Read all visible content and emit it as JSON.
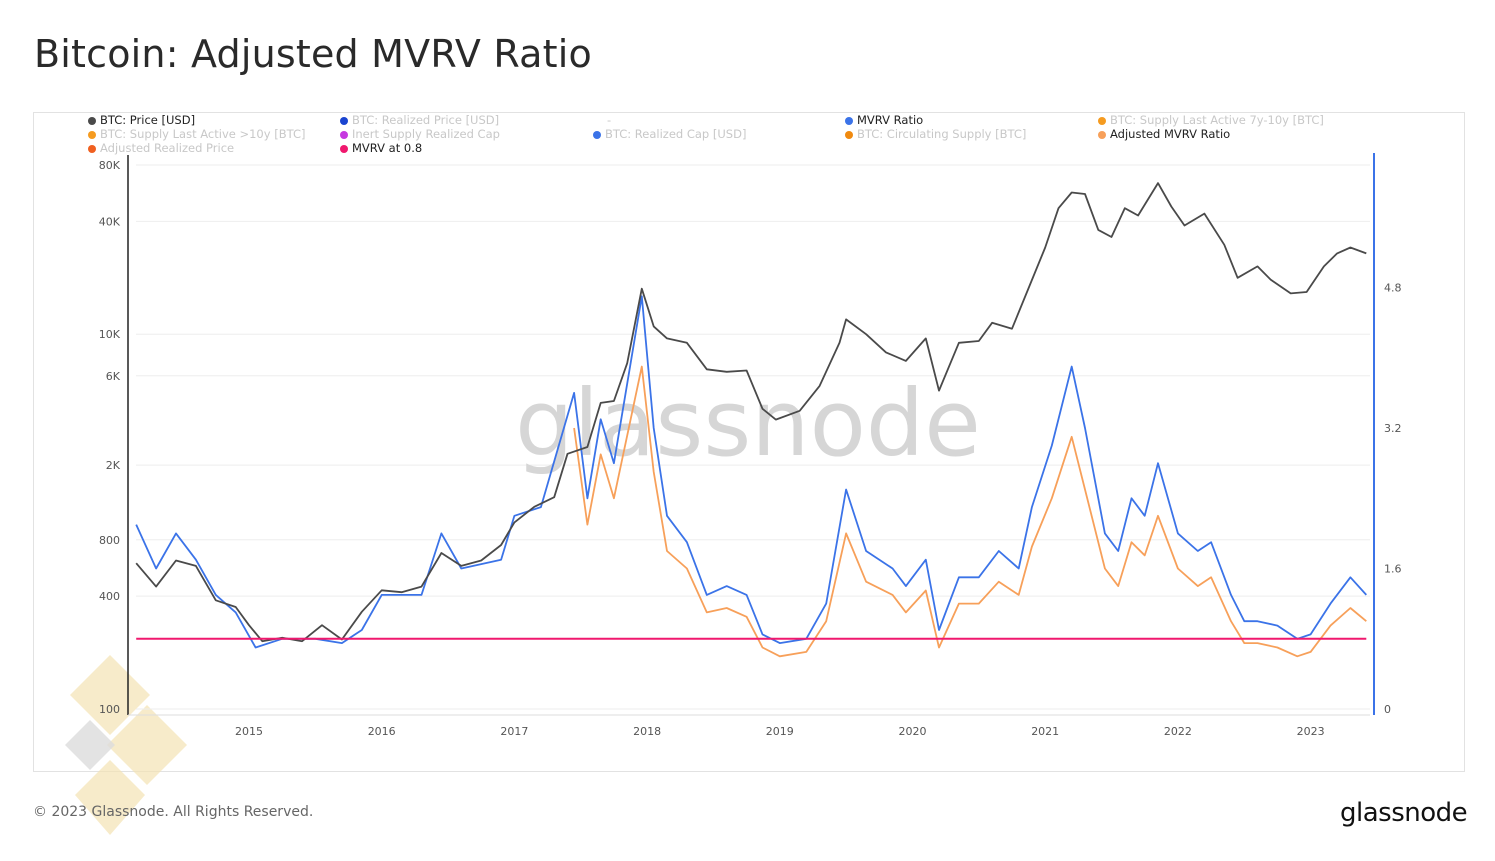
{
  "title": "Bitcoin: Adjusted MVRV Ratio",
  "footer": "© 2023 Glassnode. All Rights Reserved.",
  "logo": "glassnode",
  "watermark": "glassnode",
  "legend": [
    {
      "label": "BTC: Price [USD]",
      "color": "#4a4a4a",
      "active": true
    },
    {
      "label": "BTC: Realized Price [USD]",
      "color": "#1a44d0",
      "active": false
    },
    {
      "label": "-",
      "color": "",
      "active": false
    },
    {
      "label": "MVRV Ratio",
      "color": "#3b73e8",
      "active": true
    },
    {
      "label": "BTC: Supply Last Active 7y-10y [BTC]",
      "color": "#f59b20",
      "active": false
    },
    {
      "label": "BTC: Supply Last Active >10y [BTC]",
      "color": "#f59b20",
      "active": false
    },
    {
      "label": "Inert Supply Realized Cap",
      "color": "#c639e0",
      "active": false
    },
    {
      "label": "BTC: Realized Cap [USD]",
      "color": "#3b73e8",
      "active": false
    },
    {
      "label": "BTC: Circulating Supply [BTC]",
      "color": "#f08a10",
      "active": false
    },
    {
      "label": "Adjusted MVRV Ratio",
      "color": "#f7a05a",
      "active": true
    },
    {
      "label": "Adjusted Realized Price",
      "color": "#f06020",
      "active": false
    },
    {
      "label": "MVRV at 0.8",
      "color": "#f0186e",
      "active": true
    }
  ],
  "chart_data": {
    "type": "line",
    "title": "Bitcoin: Adjusted MVRV Ratio",
    "x_ticks": [
      "2015",
      "2016",
      "2017",
      "2018",
      "2019",
      "2020",
      "2021",
      "2022",
      "2023"
    ],
    "y_left": {
      "scale": "log",
      "range": [
        100,
        80000
      ],
      "ticks": [
        "100",
        "400",
        "800",
        "2K",
        "6K",
        "10K",
        "40K",
        "80K"
      ],
      "tick_values": [
        100,
        400,
        800,
        2000,
        6000,
        10000,
        40000,
        80000
      ]
    },
    "y_right": {
      "scale": "linear",
      "range": [
        0,
        4.8
      ],
      "ticks": [
        "0",
        "1.6",
        "3.2",
        "4.8"
      ],
      "tick_values": [
        0,
        1.6,
        3.2,
        4.8
      ]
    },
    "grid": true,
    "series": [
      {
        "name": "BTC: Price [USD]",
        "axis": "left",
        "color": "#4a4a4a",
        "x": [
          2014.15,
          2014.3,
          2014.45,
          2014.6,
          2014.75,
          2014.9,
          2015.0,
          2015.1,
          2015.25,
          2015.4,
          2015.55,
          2015.7,
          2015.85,
          2016.0,
          2016.15,
          2016.3,
          2016.45,
          2016.6,
          2016.75,
          2016.9,
          2017.0,
          2017.15,
          2017.3,
          2017.4,
          2017.55,
          2017.65,
          2017.75,
          2017.85,
          2017.96,
          2018.05,
          2018.15,
          2018.3,
          2018.45,
          2018.6,
          2018.75,
          2018.87,
          2018.97,
          2019.15,
          2019.3,
          2019.45,
          2019.5,
          2019.65,
          2019.8,
          2019.95,
          2020.1,
          2020.2,
          2020.35,
          2020.5,
          2020.6,
          2020.75,
          2020.88,
          2021.0,
          2021.1,
          2021.2,
          2021.3,
          2021.4,
          2021.5,
          2021.6,
          2021.7,
          2021.85,
          2021.95,
          2022.05,
          2022.2,
          2022.35,
          2022.45,
          2022.6,
          2022.7,
          2022.85,
          2022.97,
          2023.1,
          2023.2,
          2023.3,
          2023.42
        ],
        "values": [
          600,
          450,
          620,
          580,
          380,
          350,
          280,
          230,
          240,
          230,
          280,
          235,
          330,
          430,
          420,
          450,
          680,
          580,
          620,
          750,
          990,
          1200,
          1350,
          2300,
          2500,
          4300,
          4400,
          7000,
          17500,
          11000,
          9500,
          9000,
          6500,
          6300,
          6400,
          4000,
          3500,
          3900,
          5300,
          9000,
          12000,
          10000,
          8000,
          7200,
          9500,
          5000,
          9000,
          9200,
          11500,
          10700,
          18000,
          29000,
          47000,
          57000,
          56000,
          36000,
          33000,
          47000,
          43000,
          64000,
          48000,
          38000,
          44000,
          30000,
          20000,
          23000,
          19500,
          16500,
          16800,
          23000,
          27000,
          29000,
          27000
        ]
      },
      {
        "name": "MVRV Ratio",
        "axis": "right",
        "color": "#3b73e8",
        "x": [
          2014.15,
          2014.3,
          2014.45,
          2014.6,
          2014.75,
          2014.9,
          2015.05,
          2015.25,
          2015.5,
          2015.7,
          2015.85,
          2016.0,
          2016.3,
          2016.45,
          2016.6,
          2016.9,
          2017.0,
          2017.2,
          2017.45,
          2017.55,
          2017.65,
          2017.75,
          2017.96,
          2018.05,
          2018.15,
          2018.3,
          2018.45,
          2018.6,
          2018.75,
          2018.87,
          2019.0,
          2019.2,
          2019.35,
          2019.5,
          2019.65,
          2019.85,
          2019.95,
          2020.1,
          2020.2,
          2020.35,
          2020.5,
          2020.65,
          2020.8,
          2020.9,
          2021.05,
          2021.2,
          2021.3,
          2021.45,
          2021.55,
          2021.65,
          2021.75,
          2021.85,
          2022.0,
          2022.15,
          2022.25,
          2022.4,
          2022.5,
          2022.6,
          2022.75,
          2022.9,
          2023.0,
          2023.15,
          2023.3,
          2023.42
        ],
        "values": [
          2.1,
          1.6,
          2.0,
          1.7,
          1.3,
          1.1,
          0.7,
          0.8,
          0.8,
          0.75,
          0.9,
          1.3,
          1.3,
          2.0,
          1.6,
          1.7,
          2.2,
          2.3,
          3.6,
          2.4,
          3.3,
          2.8,
          4.7,
          3.2,
          2.2,
          1.9,
          1.3,
          1.4,
          1.3,
          0.85,
          0.75,
          0.8,
          1.2,
          2.5,
          1.8,
          1.6,
          1.4,
          1.7,
          0.9,
          1.5,
          1.5,
          1.8,
          1.6,
          2.3,
          3.0,
          3.9,
          3.2,
          2.0,
          1.8,
          2.4,
          2.2,
          2.8,
          2.0,
          1.8,
          1.9,
          1.3,
          1.0,
          1.0,
          0.95,
          0.8,
          0.85,
          1.2,
          1.5,
          1.3
        ]
      },
      {
        "name": "Adjusted MVRV Ratio",
        "axis": "right",
        "color": "#f7a05a",
        "x": [
          2017.45,
          2017.55,
          2017.65,
          2017.75,
          2017.96,
          2018.05,
          2018.15,
          2018.3,
          2018.45,
          2018.6,
          2018.75,
          2018.87,
          2019.0,
          2019.2,
          2019.35,
          2019.5,
          2019.65,
          2019.85,
          2019.95,
          2020.1,
          2020.2,
          2020.35,
          2020.5,
          2020.65,
          2020.8,
          2020.9,
          2021.05,
          2021.2,
          2021.3,
          2021.45,
          2021.55,
          2021.65,
          2021.75,
          2021.85,
          2022.0,
          2022.15,
          2022.25,
          2022.4,
          2022.5,
          2022.6,
          2022.75,
          2022.9,
          2023.0,
          2023.15,
          2023.3,
          2023.42
        ],
        "values": [
          3.2,
          2.1,
          2.9,
          2.4,
          3.9,
          2.7,
          1.8,
          1.6,
          1.1,
          1.15,
          1.05,
          0.7,
          0.6,
          0.65,
          1.0,
          2.0,
          1.45,
          1.3,
          1.1,
          1.35,
          0.7,
          1.2,
          1.2,
          1.45,
          1.3,
          1.85,
          2.4,
          3.1,
          2.5,
          1.6,
          1.4,
          1.9,
          1.75,
          2.2,
          1.6,
          1.4,
          1.5,
          1.0,
          0.75,
          0.75,
          0.7,
          0.6,
          0.65,
          0.95,
          1.15,
          1.0
        ]
      },
      {
        "name": "MVRV at 0.8",
        "axis": "right",
        "color": "#f0186e",
        "x": [
          2014.15,
          2023.42
        ],
        "values": [
          0.8,
          0.8
        ]
      }
    ]
  }
}
